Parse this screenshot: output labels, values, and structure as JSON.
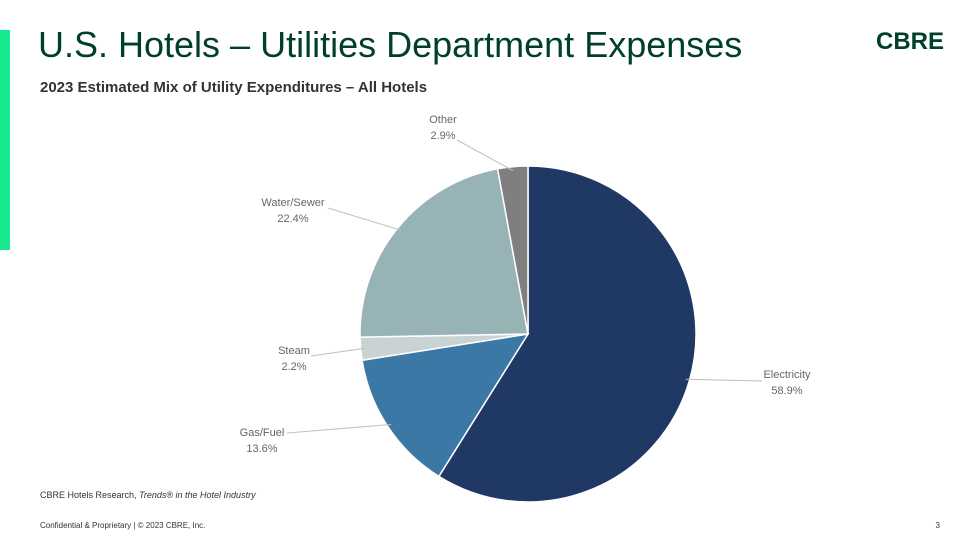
{
  "slide": {
    "title": "U.S. Hotels – Utilities Department Expenses",
    "subtitle": "2023 Estimated Mix of Utility Expenditures – All Hotels",
    "logo": "CBRE",
    "source_prefix": "CBRE Hotels Research, ",
    "source_italic": "Trends® in the Hotel Industry",
    "footer": "Confidential & Proprietary | © 2023 CBRE, Inc.",
    "page_number": "3",
    "accent_color": "#17e88f"
  },
  "chart_data": {
    "type": "pie",
    "start": "top",
    "direction": "clockwise",
    "slices": [
      {
        "label": "Electricity",
        "value": 58.9,
        "display": "58.9%",
        "color": "#1f3864"
      },
      {
        "label": "Gas/Fuel",
        "value": 13.6,
        "display": "13.6%",
        "color": "#3b78a5"
      },
      {
        "label": "Steam",
        "value": 2.2,
        "display": "2.2%",
        "color": "#c9d3d3"
      },
      {
        "label": "Water/Sewer",
        "value": 22.4,
        "display": "22.4%",
        "color": "#97b3b6"
      },
      {
        "label": "Other",
        "value": 2.9,
        "display": "2.9%",
        "color": "#7f7f7f"
      }
    ]
  }
}
